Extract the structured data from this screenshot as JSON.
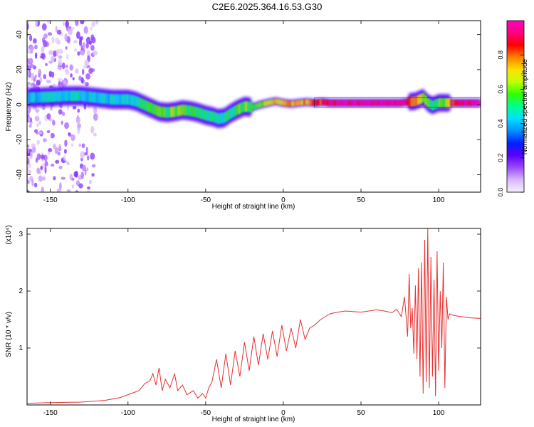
{
  "title": "C2E6.2025.364.16.53.G30",
  "chart_data": [
    {
      "type": "heatmap",
      "xlabel": "Height of straight line (km)",
      "ylabel": "Frequency (Hz)",
      "xlim": [
        -165,
        127
      ],
      "ylim": [
        -50,
        48
      ],
      "x_ticks": [
        -150,
        -100,
        -50,
        0,
        50,
        100
      ],
      "x_tick_labels": [
        "-150",
        "-100",
        "-50",
        "0",
        "50",
        "100"
      ],
      "y_ticks": [
        -40,
        -20,
        0,
        20,
        40
      ],
      "y_tick_labels": [
        "-40",
        "-20",
        "0",
        "20",
        "40"
      ],
      "colorbar": {
        "label": "Normalized spectral amplitude",
        "range": [
          0,
          1
        ],
        "ticks": [
          0.0,
          0.2,
          0.4,
          0.6,
          0.8
        ],
        "tick_labels": [
          "0.0",
          "0.2",
          "0.4",
          "0.6",
          "0.8"
        ],
        "colors": [
          "#f6f0ff",
          "#d9b8ff",
          "#9a4cff",
          "#5a00ff",
          "#0020ff",
          "#0090ff",
          "#00e0ff",
          "#00ff90",
          "#30ff00",
          "#c0ff00",
          "#ffe000",
          "#ff8000",
          "#ff0000",
          "#ff0080",
          "#ff00c0"
        ]
      },
      "ridge": {
        "x": [
          -165,
          -150,
          -140,
          -130,
          -120,
          -110,
          -100,
          -95,
          -90,
          -85,
          -80,
          -75,
          -70,
          -65,
          -60,
          -55,
          -50,
          -45,
          -42,
          -38,
          -34,
          -30,
          -25,
          -20,
          -15,
          -10,
          -5,
          0,
          5,
          10,
          15,
          20,
          25,
          30,
          40,
          50,
          60,
          70,
          75,
          80,
          85,
          90,
          93,
          96,
          100,
          105,
          110,
          115,
          120,
          127
        ],
        "y": [
          4,
          4.5,
          5,
          5,
          4,
          3,
          3,
          2,
          0,
          -2,
          -4,
          -4.5,
          -4,
          -3,
          -3.5,
          -4.5,
          -6,
          -7,
          -8,
          -7.5,
          -5,
          -3,
          -1,
          -1.5,
          0,
          1,
          2,
          1,
          0.5,
          1,
          1.5,
          1,
          1.5,
          1,
          1,
          1,
          1,
          1,
          1,
          1.5,
          2,
          4,
          1,
          -0.5,
          1,
          1,
          1,
          1,
          1,
          1
        ],
        "amplitude": [
          0.4,
          0.45,
          0.45,
          0.45,
          0.4,
          0.45,
          0.45,
          0.5,
          0.5,
          0.55,
          0.55,
          0.55,
          0.6,
          0.55,
          0.55,
          0.5,
          0.5,
          0.5,
          0.45,
          0.5,
          0.5,
          0.55,
          0.6,
          0.55,
          0.6,
          0.65,
          0.7,
          0.7,
          0.75,
          0.75,
          0.75,
          0.8,
          0.85,
          0.9,
          0.95,
          0.95,
          0.95,
          0.95,
          0.95,
          0.9,
          0.75,
          0.6,
          0.55,
          0.5,
          0.55,
          0.6,
          0.9,
          0.95,
          0.95,
          0.95
        ]
      }
    },
    {
      "type": "line",
      "xlabel": "Height of straight line (km)",
      "ylabel": "SNR (10 * v/v)",
      "y_multiplier": "(x10⁴)",
      "xlim": [
        -165,
        127
      ],
      "ylim": [
        0,
        3.1
      ],
      "x_ticks": [
        -150,
        -100,
        -50,
        0,
        50,
        100
      ],
      "x_tick_labels": [
        "-150",
        "-100",
        "-50",
        "0",
        "50",
        "100"
      ],
      "y_ticks": [
        1,
        2,
        3
      ],
      "y_tick_labels": [
        "1",
        "2",
        "3"
      ],
      "color": "#e83030",
      "series": [
        {
          "x": [
            -165,
            -150,
            -130,
            -115,
            -105,
            -98,
            -93,
            -89,
            -86,
            -84,
            -82,
            -80,
            -78,
            -76,
            -73,
            -70,
            -68,
            -65,
            -62,
            -58,
            -55,
            -52,
            -50,
            -48,
            -46,
            -43,
            -40,
            -37,
            -34,
            -31,
            -28,
            -25,
            -22,
            -19,
            -16,
            -13,
            -10,
            -7,
            -4,
            -1,
            2,
            5,
            8,
            11,
            14,
            17,
            20,
            24,
            27,
            30,
            35,
            40,
            50,
            60,
            65,
            70,
            73,
            76,
            78,
            80,
            81,
            82,
            83,
            84,
            85,
            86,
            87,
            88,
            89,
            90,
            91,
            92,
            93,
            94,
            95,
            96,
            97,
            98,
            99,
            100,
            101,
            102,
            103,
            104,
            105,
            106,
            107,
            110,
            115,
            120,
            127
          ],
          "y": [
            0.03,
            0.04,
            0.05,
            0.08,
            0.13,
            0.2,
            0.25,
            0.38,
            0.42,
            0.55,
            0.35,
            0.65,
            0.25,
            0.45,
            0.3,
            0.55,
            0.25,
            0.35,
            0.18,
            0.25,
            0.12,
            0.2,
            0.12,
            0.3,
            0.4,
            0.8,
            0.3,
            0.9,
            0.35,
            0.95,
            0.5,
            1.1,
            0.6,
            1.2,
            0.7,
            1.25,
            0.8,
            1.3,
            0.85,
            1.4,
            0.95,
            1.35,
            1.0,
            1.5,
            1.15,
            1.35,
            1.4,
            1.5,
            1.55,
            1.6,
            1.63,
            1.65,
            1.63,
            1.67,
            1.65,
            1.62,
            1.68,
            1.55,
            1.9,
            1.2,
            2.3,
            1.35,
            1.7,
            0.9,
            2.1,
            0.8,
            2.4,
            0.5,
            2.5,
            0.2,
            2.9,
            0.4,
            3.1,
            0.3,
            2.6,
            0.5,
            2.2,
            0.15,
            2.7,
            0.6,
            2.0,
            1.0,
            2.5,
            0.3,
            1.9,
            1.5,
            1.6,
            1.57,
            1.55,
            1.53,
            1.52
          ]
        }
      ]
    }
  ]
}
